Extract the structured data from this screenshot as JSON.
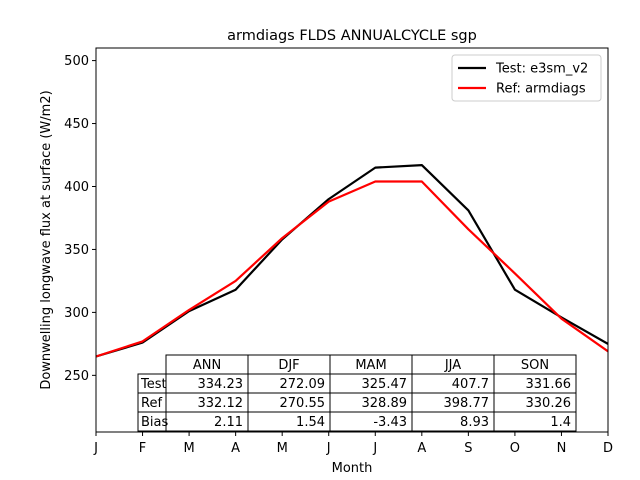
{
  "chart_data": {
    "type": "line",
    "title": "armdiags FLDS ANNUALCYCLE sgp",
    "xlabel": "Month",
    "ylabel": "Downwelling longwave flux at surface (W/m2)",
    "x_ticks": [
      "J",
      "F",
      "M",
      "A",
      "M",
      "J",
      "J",
      "A",
      "S",
      "O",
      "N",
      "D"
    ],
    "y_ticks": [
      250,
      300,
      350,
      400,
      450,
      500
    ],
    "ylim": [
      205,
      510
    ],
    "grid": false,
    "legend_position": "upper-right",
    "series": [
      {
        "name": "Test: e3sm_v2",
        "color": "#000000",
        "values": [
          265,
          276,
          301,
          318,
          358,
          390,
          415,
          417,
          381,
          318,
          296,
          275
        ]
      },
      {
        "name": "Ref: armdiags",
        "color": "#ff0000",
        "values": [
          265,
          277,
          302,
          325,
          359,
          388,
          404,
          404,
          366,
          331,
          295,
          269
        ]
      }
    ],
    "table": {
      "col_labels": [
        "ANN",
        "DJF",
        "MAM",
        "JJA",
        "SON"
      ],
      "rows": [
        {
          "label": "Test",
          "cells": [
            "334.23",
            "272.09",
            "325.47",
            "407.7",
            "331.66"
          ]
        },
        {
          "label": "Ref",
          "cells": [
            "332.12",
            "270.55",
            "328.89",
            "398.77",
            "330.26"
          ]
        },
        {
          "label": "Bias",
          "cells": [
            "2.11",
            "1.54",
            "-3.43",
            "8.93",
            "1.4"
          ]
        }
      ]
    }
  }
}
